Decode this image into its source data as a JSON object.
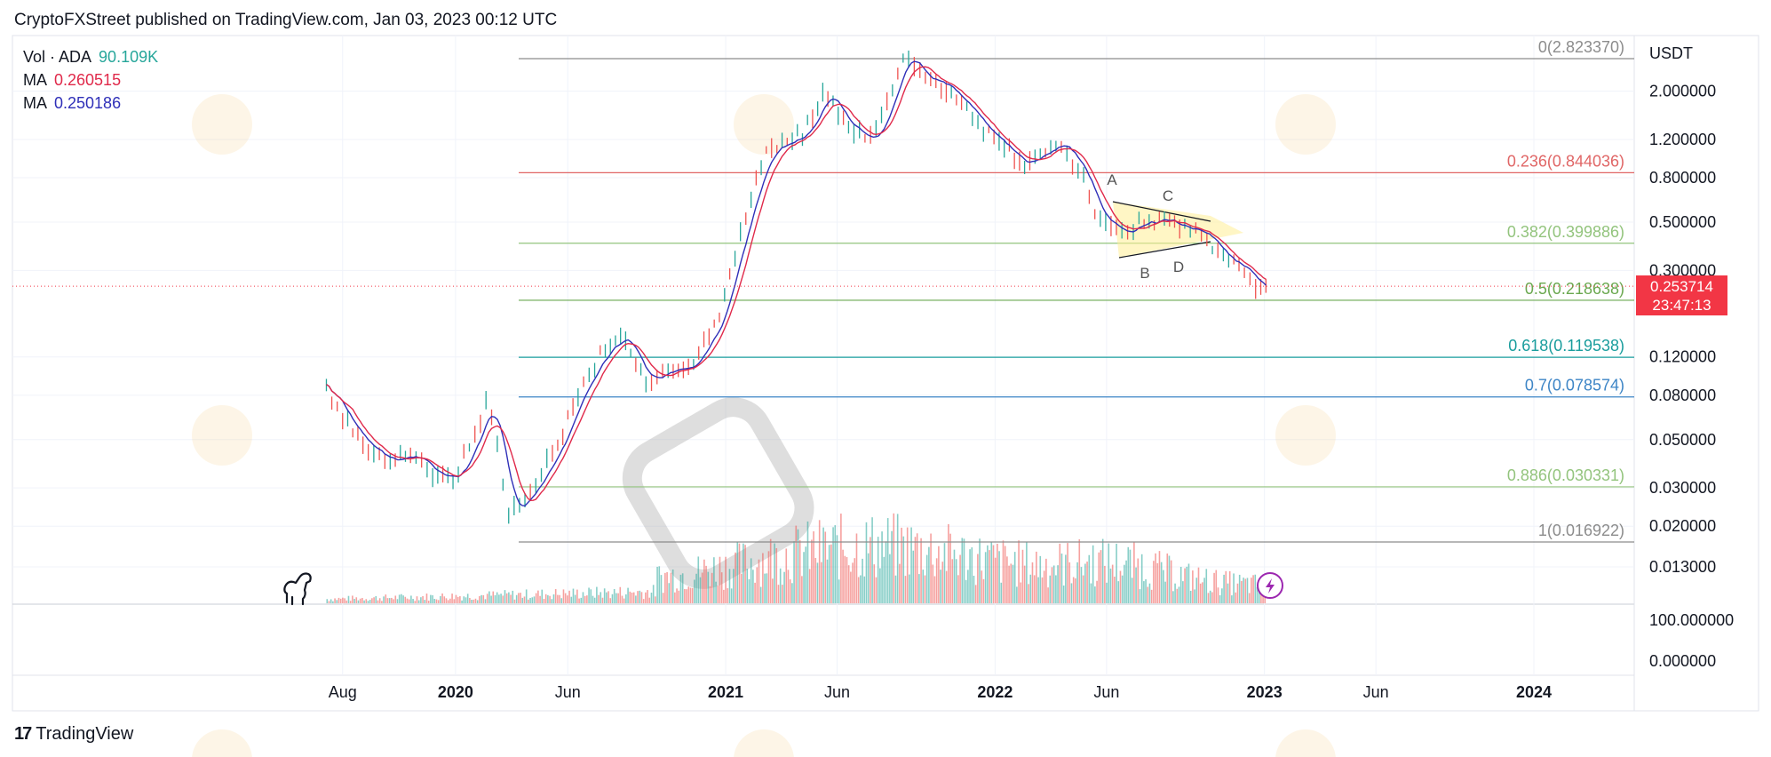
{
  "header": {
    "published_line": "CryptoFXStreet published on TradingView.com, Jan 03, 2023 00:12 UTC"
  },
  "legend": {
    "vol": {
      "label": "Vol · ADA",
      "value": "90.109K",
      "color": "#26a69a"
    },
    "ma1": {
      "label": "MA",
      "value": "0.260515",
      "color": "#e0294a"
    },
    "ma2": {
      "label": "MA",
      "value": "0.250186",
      "color": "#2f2fb8"
    }
  },
  "price_axis": {
    "unit": "USDT",
    "ticks": [
      "2.000000",
      "1.200000",
      "0.800000",
      "0.500000",
      "0.300000",
      "0.120000",
      "0.080000",
      "0.050000",
      "0.030000",
      "0.020000",
      "0.013000"
    ],
    "volume_ticks": [
      "100.000000",
      "0.000000"
    ]
  },
  "current_price": {
    "value": "0.253714",
    "countdown": "23:47:13",
    "color": "#f23645"
  },
  "time_axis": {
    "labels": [
      {
        "text": "Aug",
        "bold": false
      },
      {
        "text": "2020",
        "bold": true
      },
      {
        "text": "Jun",
        "bold": false
      },
      {
        "text": "2021",
        "bold": true
      },
      {
        "text": "Jun",
        "bold": false
      },
      {
        "text": "2022",
        "bold": true
      },
      {
        "text": "Jun",
        "bold": false
      },
      {
        "text": "2023",
        "bold": true
      },
      {
        "text": "Jun",
        "bold": false
      },
      {
        "text": "2024",
        "bold": true
      }
    ]
  },
  "chart_data": {
    "type": "line",
    "symbol": "ADA/USDT",
    "scale": "log",
    "ylim": [
      0.013,
      2.82337
    ],
    "fib_levels": [
      {
        "label": "0(2.823370)",
        "ratio": 0,
        "price": 2.82337,
        "color": "#8c8c8c"
      },
      {
        "label": "0.236(0.844036)",
        "ratio": 0.236,
        "price": 0.844036,
        "color": "#e06666"
      },
      {
        "label": "0.382(0.399886)",
        "ratio": 0.382,
        "price": 0.399886,
        "color": "#93c47d"
      },
      {
        "label": "0.5(0.218638)",
        "ratio": 0.5,
        "price": 0.218638,
        "color": "#6aa84f"
      },
      {
        "label": "0.618(0.119538)",
        "ratio": 0.618,
        "price": 0.119538,
        "color": "#1a9d9d"
      },
      {
        "label": "0.7(0.078574)",
        "ratio": 0.7,
        "price": 0.078574,
        "color": "#3d85c6"
      },
      {
        "label": "0.886(0.030331)",
        "ratio": 0.886,
        "price": 0.030331,
        "color": "#93c47d"
      },
      {
        "label": "1(0.016922)",
        "ratio": 1,
        "price": 0.016922,
        "color": "#8c8c8c"
      }
    ],
    "pattern_labels": [
      "A",
      "B",
      "C",
      "D"
    ],
    "series": [
      {
        "name": "",
        "x": [
          "2019-07-10",
          "2019-08-01",
          "2019-09-01",
          "2019-10-01",
          "2019-11-01",
          "2019-12-01",
          "2020-01-01",
          "2020-02-15",
          "2020-03-13",
          "2020-04-15",
          "2020-05-15",
          "2020-06-15",
          "2020-07-15",
          "2020-08-15",
          "2020-09-15",
          "2020-10-15",
          "2020-11-15",
          "2020-12-20",
          "2021-01-10",
          "2021-02-01",
          "2021-02-25",
          "2021-03-15",
          "2021-04-15",
          "2021-05-16",
          "2021-06-20",
          "2021-07-20",
          "2021-08-15",
          "2021-09-02",
          "2021-09-25",
          "2021-10-20",
          "2021-11-20",
          "2021-12-20",
          "2022-01-10",
          "2022-02-10",
          "2022-03-28",
          "2022-05-01",
          "2022-05-20",
          "2022-06-18",
          "2022-07-15",
          "2022-08-15",
          "2022-09-15",
          "2022-10-15",
          "2022-11-10",
          "2022-12-01",
          "2022-12-20",
          "2023-01-03"
        ],
        "values": [
          0.088,
          0.065,
          0.047,
          0.04,
          0.042,
          0.035,
          0.033,
          0.078,
          0.022,
          0.031,
          0.045,
          0.08,
          0.125,
          0.15,
          0.095,
          0.1,
          0.105,
          0.17,
          0.32,
          0.6,
          1.05,
          1.15,
          1.28,
          1.95,
          1.3,
          1.18,
          2.1,
          2.9,
          2.3,
          2.15,
          1.7,
          1.3,
          1.15,
          0.9,
          1.18,
          0.8,
          0.52,
          0.45,
          0.5,
          0.51,
          0.47,
          0.42,
          0.33,
          0.315,
          0.26,
          0.253714
        ]
      }
    ],
    "volume_note": "volume histogram shown beneath price; colors green/red"
  }
}
